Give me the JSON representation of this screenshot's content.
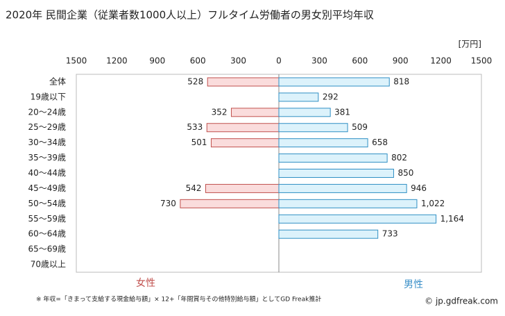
{
  "chart_data": {
    "type": "butterfly",
    "title": "2020年 民間企業（従業者数1000人以上）フルタイム労働者の男女別平均年収",
    "unit": "[万円]",
    "categories": [
      "全体",
      "19歳以下",
      "20〜24歳",
      "25〜29歳",
      "30〜34歳",
      "35〜39歳",
      "40〜44歳",
      "45〜49歳",
      "50〜54歳",
      "55〜59歳",
      "60〜64歳",
      "65〜69歳",
      "70歳以上"
    ],
    "series": [
      {
        "name": "女性",
        "side": "left",
        "color": "#fadcdc",
        "edgecolor": "#c0504d",
        "textcolor": "#c0504d",
        "values": [
          528,
          null,
          352,
          533,
          501,
          null,
          null,
          542,
          730,
          null,
          null,
          null,
          null
        ]
      },
      {
        "name": "男性",
        "side": "right",
        "color": "#dcf2fb",
        "edgecolor": "#2f8fc4",
        "textcolor": "#3a8fc8",
        "values": [
          818,
          292,
          381,
          509,
          658,
          802,
          850,
          946,
          1022,
          1164,
          733,
          null,
          null
        ],
        "value_labels": [
          "818",
          "292",
          "381",
          "509",
          "658",
          "802",
          "850",
          "946",
          "1,022",
          "1,164",
          "733",
          null,
          null
        ]
      }
    ],
    "xlim": [
      -1500,
      1500
    ],
    "xticks": [
      {
        "value": -1500,
        "label": "1500"
      },
      {
        "value": -1200,
        "label": "1200"
      },
      {
        "value": -900,
        "label": "900"
      },
      {
        "value": -600,
        "label": "600"
      },
      {
        "value": -300,
        "label": "300"
      },
      0,
      300,
      600,
      900,
      1200,
      1500
    ],
    "grid": false,
    "footnote": "※ 年収=「きまって支給する現金給与額」× 12+「年間賞与その他特別給与額」としてGD Freak推計",
    "credit": "© jp.gdfreak.com"
  }
}
